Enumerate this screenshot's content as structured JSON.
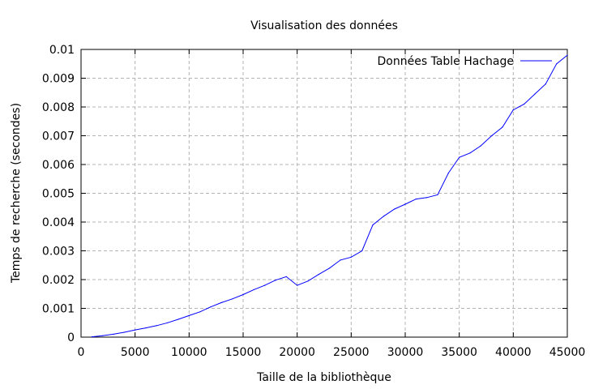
{
  "chart_data": {
    "type": "line",
    "title": "Visualisation des données",
    "xlabel": "Taille de la bibliothèque",
    "ylabel": "Temps de recherche (secondes)",
    "xlim": [
      0,
      45000
    ],
    "ylim": [
      0,
      0.01
    ],
    "grid": true,
    "legend_position": "top-right",
    "x_ticks": [
      "0",
      "5000",
      "10000",
      "15000",
      "20000",
      "25000",
      "30000",
      "35000",
      "40000",
      "45000"
    ],
    "y_ticks": [
      "0",
      "0.001",
      "0.002",
      "0.003",
      "0.004",
      "0.005",
      "0.006",
      "0.007",
      "0.008",
      "0.009",
      "0.01"
    ],
    "series": [
      {
        "name": "Données Table Hachage",
        "color": "#0000ff",
        "x": [
          1000,
          2000,
          3000,
          4000,
          5000,
          6000,
          7000,
          8000,
          9000,
          10000,
          11000,
          12000,
          13000,
          14000,
          15000,
          16000,
          17000,
          18000,
          19000,
          20000,
          21000,
          22000,
          23000,
          24000,
          25000,
          26000,
          27000,
          28000,
          29000,
          30000,
          31000,
          32000,
          33000,
          34000,
          35000,
          36000,
          37000,
          38000,
          39000,
          40000,
          41000,
          42000,
          43000,
          44000,
          45000
        ],
        "y": [
          1e-05,
          5e-05,
          0.0001,
          0.00017,
          0.00025,
          0.00032,
          0.0004,
          0.0005,
          0.00062,
          0.00075,
          0.00088,
          0.00105,
          0.0012,
          0.00133,
          0.00148,
          0.00165,
          0.0018,
          0.00198,
          0.0021,
          0.0018,
          0.00195,
          0.00218,
          0.0024,
          0.00268,
          0.00278,
          0.003,
          0.0039,
          0.0042,
          0.00445,
          0.00462,
          0.0048,
          0.00485,
          0.00495,
          0.0057,
          0.00625,
          0.0064,
          0.00665,
          0.007,
          0.0073,
          0.0079,
          0.0081,
          0.00845,
          0.0088,
          0.0095,
          0.0098
        ]
      }
    ]
  }
}
